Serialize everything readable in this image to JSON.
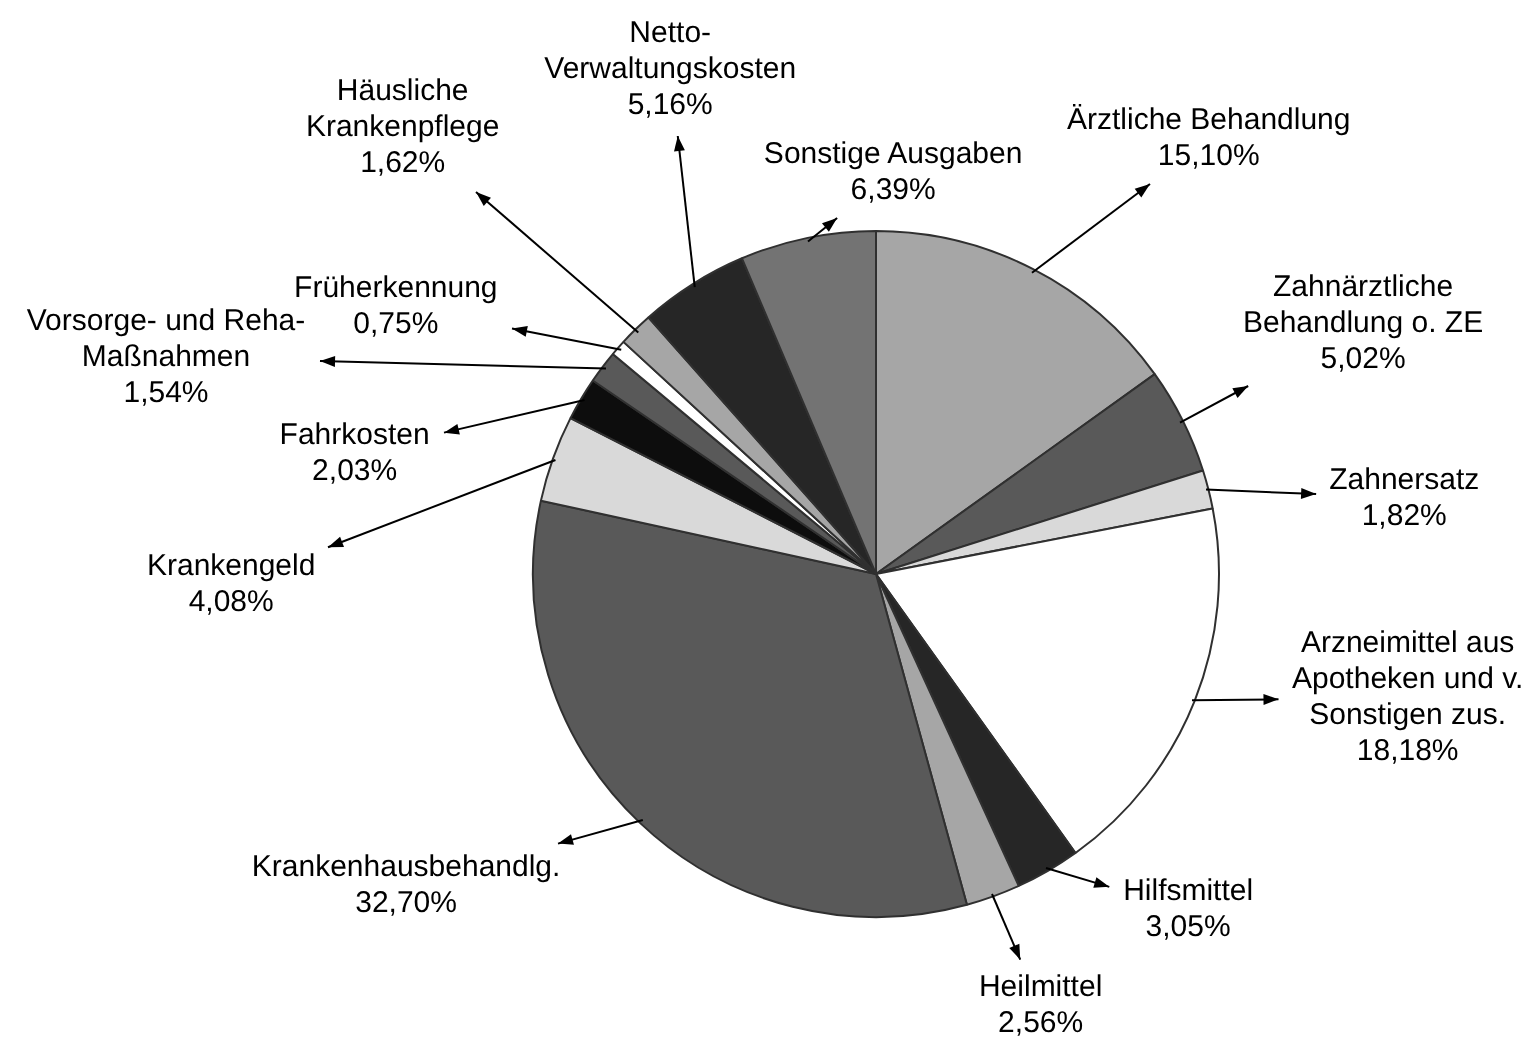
{
  "chart_data": {
    "type": "pie",
    "categories": [
      "Ärztliche Behandlung",
      "Zahnärztliche\nBehandlung o. ZE",
      "Zahnersatz",
      "Arzneimittel aus\nApotheken und v.\nSonstigen zus.",
      "Hilfsmittel",
      "Heilmittel",
      "Krankenhausbehandlg.",
      "Krankengeld",
      "Fahrkosten",
      "Vorsorge- und Reha-\nMaßnahmen",
      "Früherkennung",
      "Häusliche\nKrankenpflege",
      "Netto-\nVerwaltungskosten",
      "Sonstige Ausgaben"
    ],
    "values": [
      15.1,
      5.02,
      1.82,
      18.18,
      3.05,
      2.56,
      32.7,
      4.08,
      2.03,
      1.54,
      0.75,
      1.62,
      5.16,
      6.39
    ],
    "colors": [
      "#a6a6a6",
      "#595959",
      "#d9d9d9",
      "#ffffff",
      "#262626",
      "#a6a6a6",
      "#595959",
      "#d9d9d9",
      "#0d0d0d",
      "#595959",
      "#ffffff",
      "#a6a6a6",
      "#262626",
      "#737373"
    ],
    "value_labels": [
      "15,10%",
      "5,02%",
      "1,82%",
      "18,18%",
      "3,05%",
      "2,56%",
      "32,70%",
      "4,08%",
      "2,03%",
      "1,54%",
      "0,75%",
      "1,62%",
      "5,16%",
      "6,39%"
    ],
    "legend": false
  }
}
